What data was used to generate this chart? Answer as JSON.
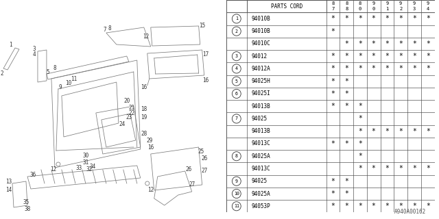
{
  "bg_color": "#ffffff",
  "watermark": "A940A00162",
  "fig_width": 6.4,
  "fig_height": 3.2,
  "dpi": 100,
  "table": {
    "header": [
      "PARTS CORD",
      "8\n7",
      "8\n8",
      "8\n0",
      "9\n0",
      "9\n1",
      "9\n2",
      "9\n3",
      "9\n4"
    ],
    "rows": [
      [
        "1",
        "94010B",
        1,
        1,
        1,
        1,
        1,
        1,
        1,
        1
      ],
      [
        "2",
        "94010B",
        1,
        0,
        0,
        0,
        0,
        0,
        0,
        0
      ],
      [
        "",
        "94010C",
        0,
        1,
        1,
        1,
        1,
        1,
        1,
        1
      ],
      [
        "3",
        "94012",
        1,
        1,
        1,
        1,
        1,
        1,
        1,
        1
      ],
      [
        "4",
        "94012A",
        1,
        1,
        1,
        1,
        1,
        1,
        1,
        1
      ],
      [
        "5",
        "94025H",
        1,
        1,
        0,
        0,
        0,
        0,
        0,
        0
      ],
      [
        "6",
        "94025I",
        1,
        1,
        0,
        0,
        0,
        0,
        0,
        0
      ],
      [
        "",
        "94013B",
        1,
        1,
        1,
        0,
        0,
        0,
        0,
        0
      ],
      [
        "7",
        "94025",
        0,
        0,
        1,
        0,
        0,
        0,
        0,
        0
      ],
      [
        "",
        "94013B",
        0,
        0,
        1,
        1,
        1,
        1,
        1,
        1
      ],
      [
        "",
        "94013C",
        1,
        1,
        1,
        0,
        0,
        0,
        0,
        0
      ],
      [
        "8",
        "94025A",
        0,
        0,
        1,
        0,
        0,
        0,
        0,
        0
      ],
      [
        "",
        "94013C",
        0,
        0,
        1,
        1,
        1,
        1,
        1,
        1
      ],
      [
        "9",
        "94025",
        1,
        1,
        0,
        0,
        0,
        0,
        0,
        0
      ],
      [
        "10",
        "94025A",
        1,
        1,
        0,
        0,
        0,
        0,
        0,
        0
      ],
      [
        "11",
        "94053P",
        1,
        1,
        1,
        1,
        1,
        1,
        1,
        1
      ]
    ]
  }
}
